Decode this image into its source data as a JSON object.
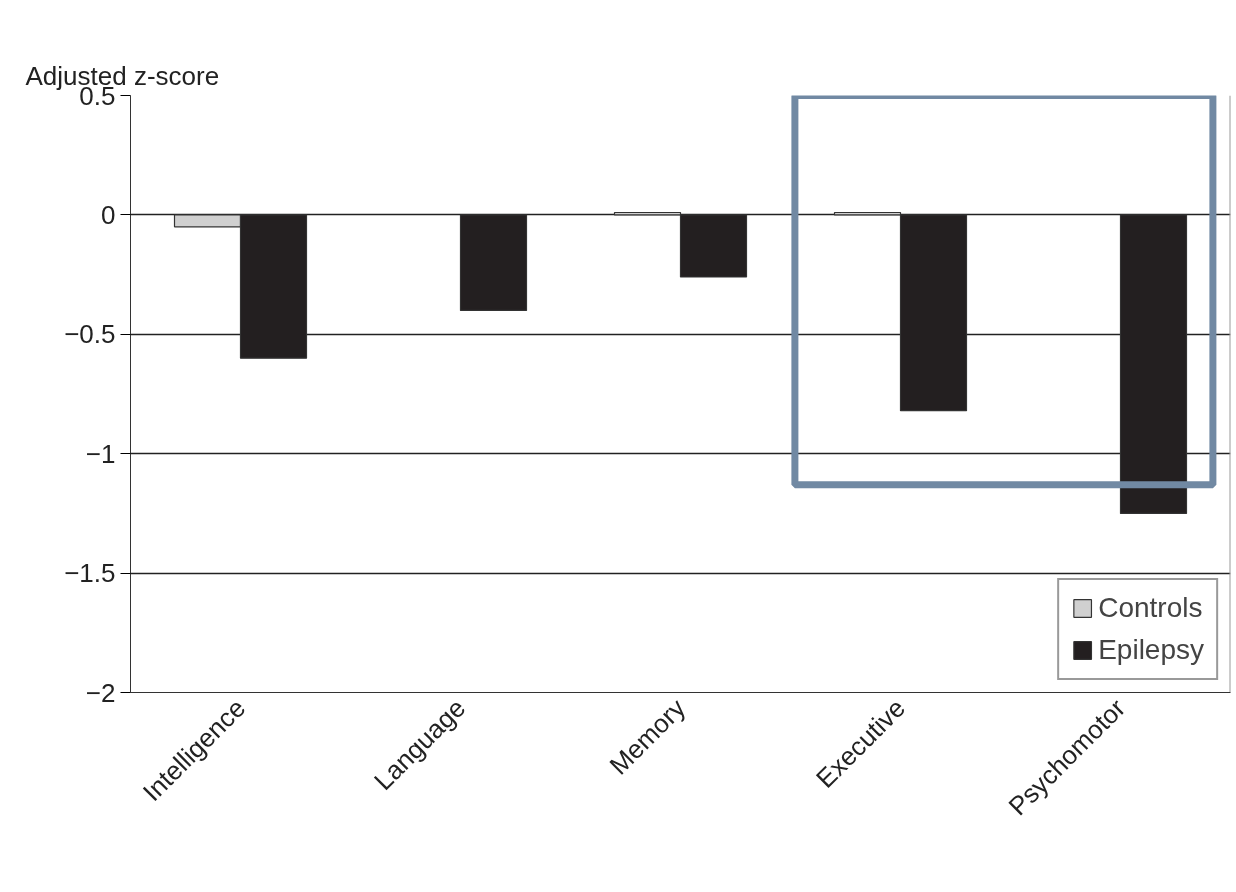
{
  "chart_data": {
    "type": "bar",
    "ylabel": "Adjusted z-score",
    "categories": [
      "Intelligence",
      "Language",
      "Memory",
      "Executive",
      "Psychomotor"
    ],
    "series": [
      {
        "name": "Controls",
        "color": "#d0d0d0",
        "values": [
          -0.05,
          null,
          0.01,
          0.01,
          null
        ]
      },
      {
        "name": "Epilepsy",
        "color": "#231f20",
        "values": [
          -0.6,
          -0.4,
          -0.26,
          -0.82,
          -1.25
        ]
      }
    ],
    "ylim": [
      -2,
      0.5
    ],
    "yticks": [
      {
        "value": -2,
        "label": "−2"
      },
      {
        "value": -1.5,
        "label": "−1.5"
      },
      {
        "value": -1,
        "label": "−1"
      },
      {
        "value": -0.5,
        "label": "−0.5"
      },
      0,
      0.5
    ],
    "grid": "y",
    "legend": "bottom right"
  }
}
